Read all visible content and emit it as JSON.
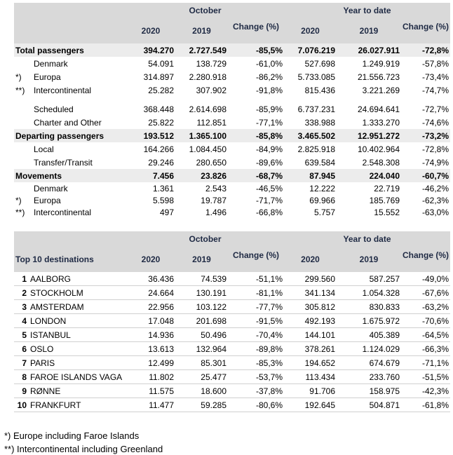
{
  "table1": {
    "header": {
      "group1": "October",
      "group2": "Year to date",
      "columns": [
        "2020",
        "2019",
        "Change (%)",
        "2020",
        "2019",
        "Change (%)"
      ]
    },
    "groups": [
      {
        "total": {
          "label": "Total passengers",
          "cells": [
            "394.270",
            "2.727.549",
            "-85,5%",
            "7.076.219",
            "26.027.911",
            "-72,8%"
          ]
        },
        "rows": [
          {
            "label": "Denmark",
            "cells": [
              "54.091",
              "138.729",
              "-61,0%",
              "527.698",
              "1.249.919",
              "-57,8%"
            ]
          },
          {
            "marker": "*)",
            "label": "Europa",
            "cells": [
              "314.897",
              "2.280.918",
              "-86,2%",
              "5.733.085",
              "21.556.723",
              "-73,4%"
            ]
          },
          {
            "marker": "**)",
            "label": "Intercontinental",
            "cells": [
              "25.282",
              "307.902",
              "-91,8%",
              "815.436",
              "3.221.269",
              "-74,7%"
            ]
          }
        ]
      },
      {
        "rows": [
          {
            "label": "Scheduled",
            "cells": [
              "368.448",
              "2.614.698",
              "-85,9%",
              "6.737.231",
              "24.694.641",
              "-72,7%"
            ]
          },
          {
            "label": "Charter and Other",
            "cells": [
              "25.822",
              "112.851",
              "-77,1%",
              "338.988",
              "1.333.270",
              "-74,6%"
            ]
          }
        ]
      },
      {
        "total": {
          "label": "Departing passengers",
          "cells": [
            "193.512",
            "1.365.100",
            "-85,8%",
            "3.465.502",
            "12.951.272",
            "-73,2%"
          ]
        },
        "rows": [
          {
            "label": "Local",
            "cells": [
              "164.266",
              "1.084.450",
              "-84,9%",
              "2.825.918",
              "10.402.964",
              "-72,8%"
            ]
          },
          {
            "label": "Transfer/Transit",
            "cells": [
              "29.246",
              "280.650",
              "-89,6%",
              "639.584",
              "2.548.308",
              "-74,9%"
            ]
          }
        ]
      },
      {
        "total": {
          "label": "Movements",
          "cells": [
            "7.456",
            "23.826",
            "-68,7%",
            "87.945",
            "224.040",
            "-60,7%"
          ]
        },
        "rows": [
          {
            "label": "Denmark",
            "cells": [
              "1.361",
              "2.543",
              "-46,5%",
              "12.222",
              "22.719",
              "-46,2%"
            ]
          },
          {
            "marker": "*)",
            "label": "Europa",
            "cells": [
              "5.598",
              "19.787",
              "-71,7%",
              "69.966",
              "185.769",
              "-62,3%"
            ]
          },
          {
            "marker": "**)",
            "label": "Intercontinental",
            "cells": [
              "497",
              "1.496",
              "-66,8%",
              "5.757",
              "15.552",
              "-63,0%"
            ]
          }
        ]
      }
    ]
  },
  "table2": {
    "header": {
      "group1": "October",
      "group2": "Year to date",
      "title": "Top 10 destinations",
      "columns": [
        "2020",
        "2019",
        "Change (%)",
        "2020",
        "2019",
        "Change (%)"
      ]
    },
    "rows": [
      {
        "rank": "1",
        "name": "AALBORG",
        "cells": [
          "36.436",
          "74.539",
          "-51,1%",
          "299.560",
          "587.257",
          "-49,0%"
        ]
      },
      {
        "rank": "2",
        "name": "STOCKHOLM",
        "cells": [
          "24.664",
          "130.191",
          "-81,1%",
          "341.134",
          "1.054.328",
          "-67,6%"
        ]
      },
      {
        "rank": "3",
        "name": "AMSTERDAM",
        "cells": [
          "22.956",
          "103.122",
          "-77,7%",
          "305.812",
          "830.833",
          "-63,2%"
        ]
      },
      {
        "rank": "4",
        "name": "LONDON",
        "cells": [
          "17.048",
          "201.698",
          "-91,5%",
          "492.193",
          "1.675.972",
          "-70,6%"
        ]
      },
      {
        "rank": "5",
        "name": "ISTANBUL",
        "cells": [
          "14.936",
          "50.496",
          "-70,4%",
          "144.101",
          "405.389",
          "-64,5%"
        ]
      },
      {
        "rank": "6",
        "name": "OSLO",
        "cells": [
          "13.613",
          "132.964",
          "-89,8%",
          "378.261",
          "1.124.029",
          "-66,3%"
        ]
      },
      {
        "rank": "7",
        "name": "PARIS",
        "cells": [
          "12.499",
          "85.301",
          "-85,3%",
          "194.652",
          "674.679",
          "-71,1%"
        ]
      },
      {
        "rank": "8",
        "name": "FAROE ISLANDS VAGA",
        "cells": [
          "11.802",
          "25.477",
          "-53,7%",
          "113.434",
          "233.760",
          "-51,5%"
        ]
      },
      {
        "rank": "9",
        "name": "RØNNE",
        "cells": [
          "11.575",
          "18.600",
          "-37,8%",
          "91.706",
          "158.975",
          "-42,3%"
        ]
      },
      {
        "rank": "10",
        "name": "FRANKFURT",
        "cells": [
          "11.477",
          "59.285",
          "-80,6%",
          "192.645",
          "504.871",
          "-61,8%"
        ]
      }
    ]
  },
  "footnotes": [
    "*) Europe including Faroe Islands",
    "**) Intercontinental including Greenland"
  ]
}
